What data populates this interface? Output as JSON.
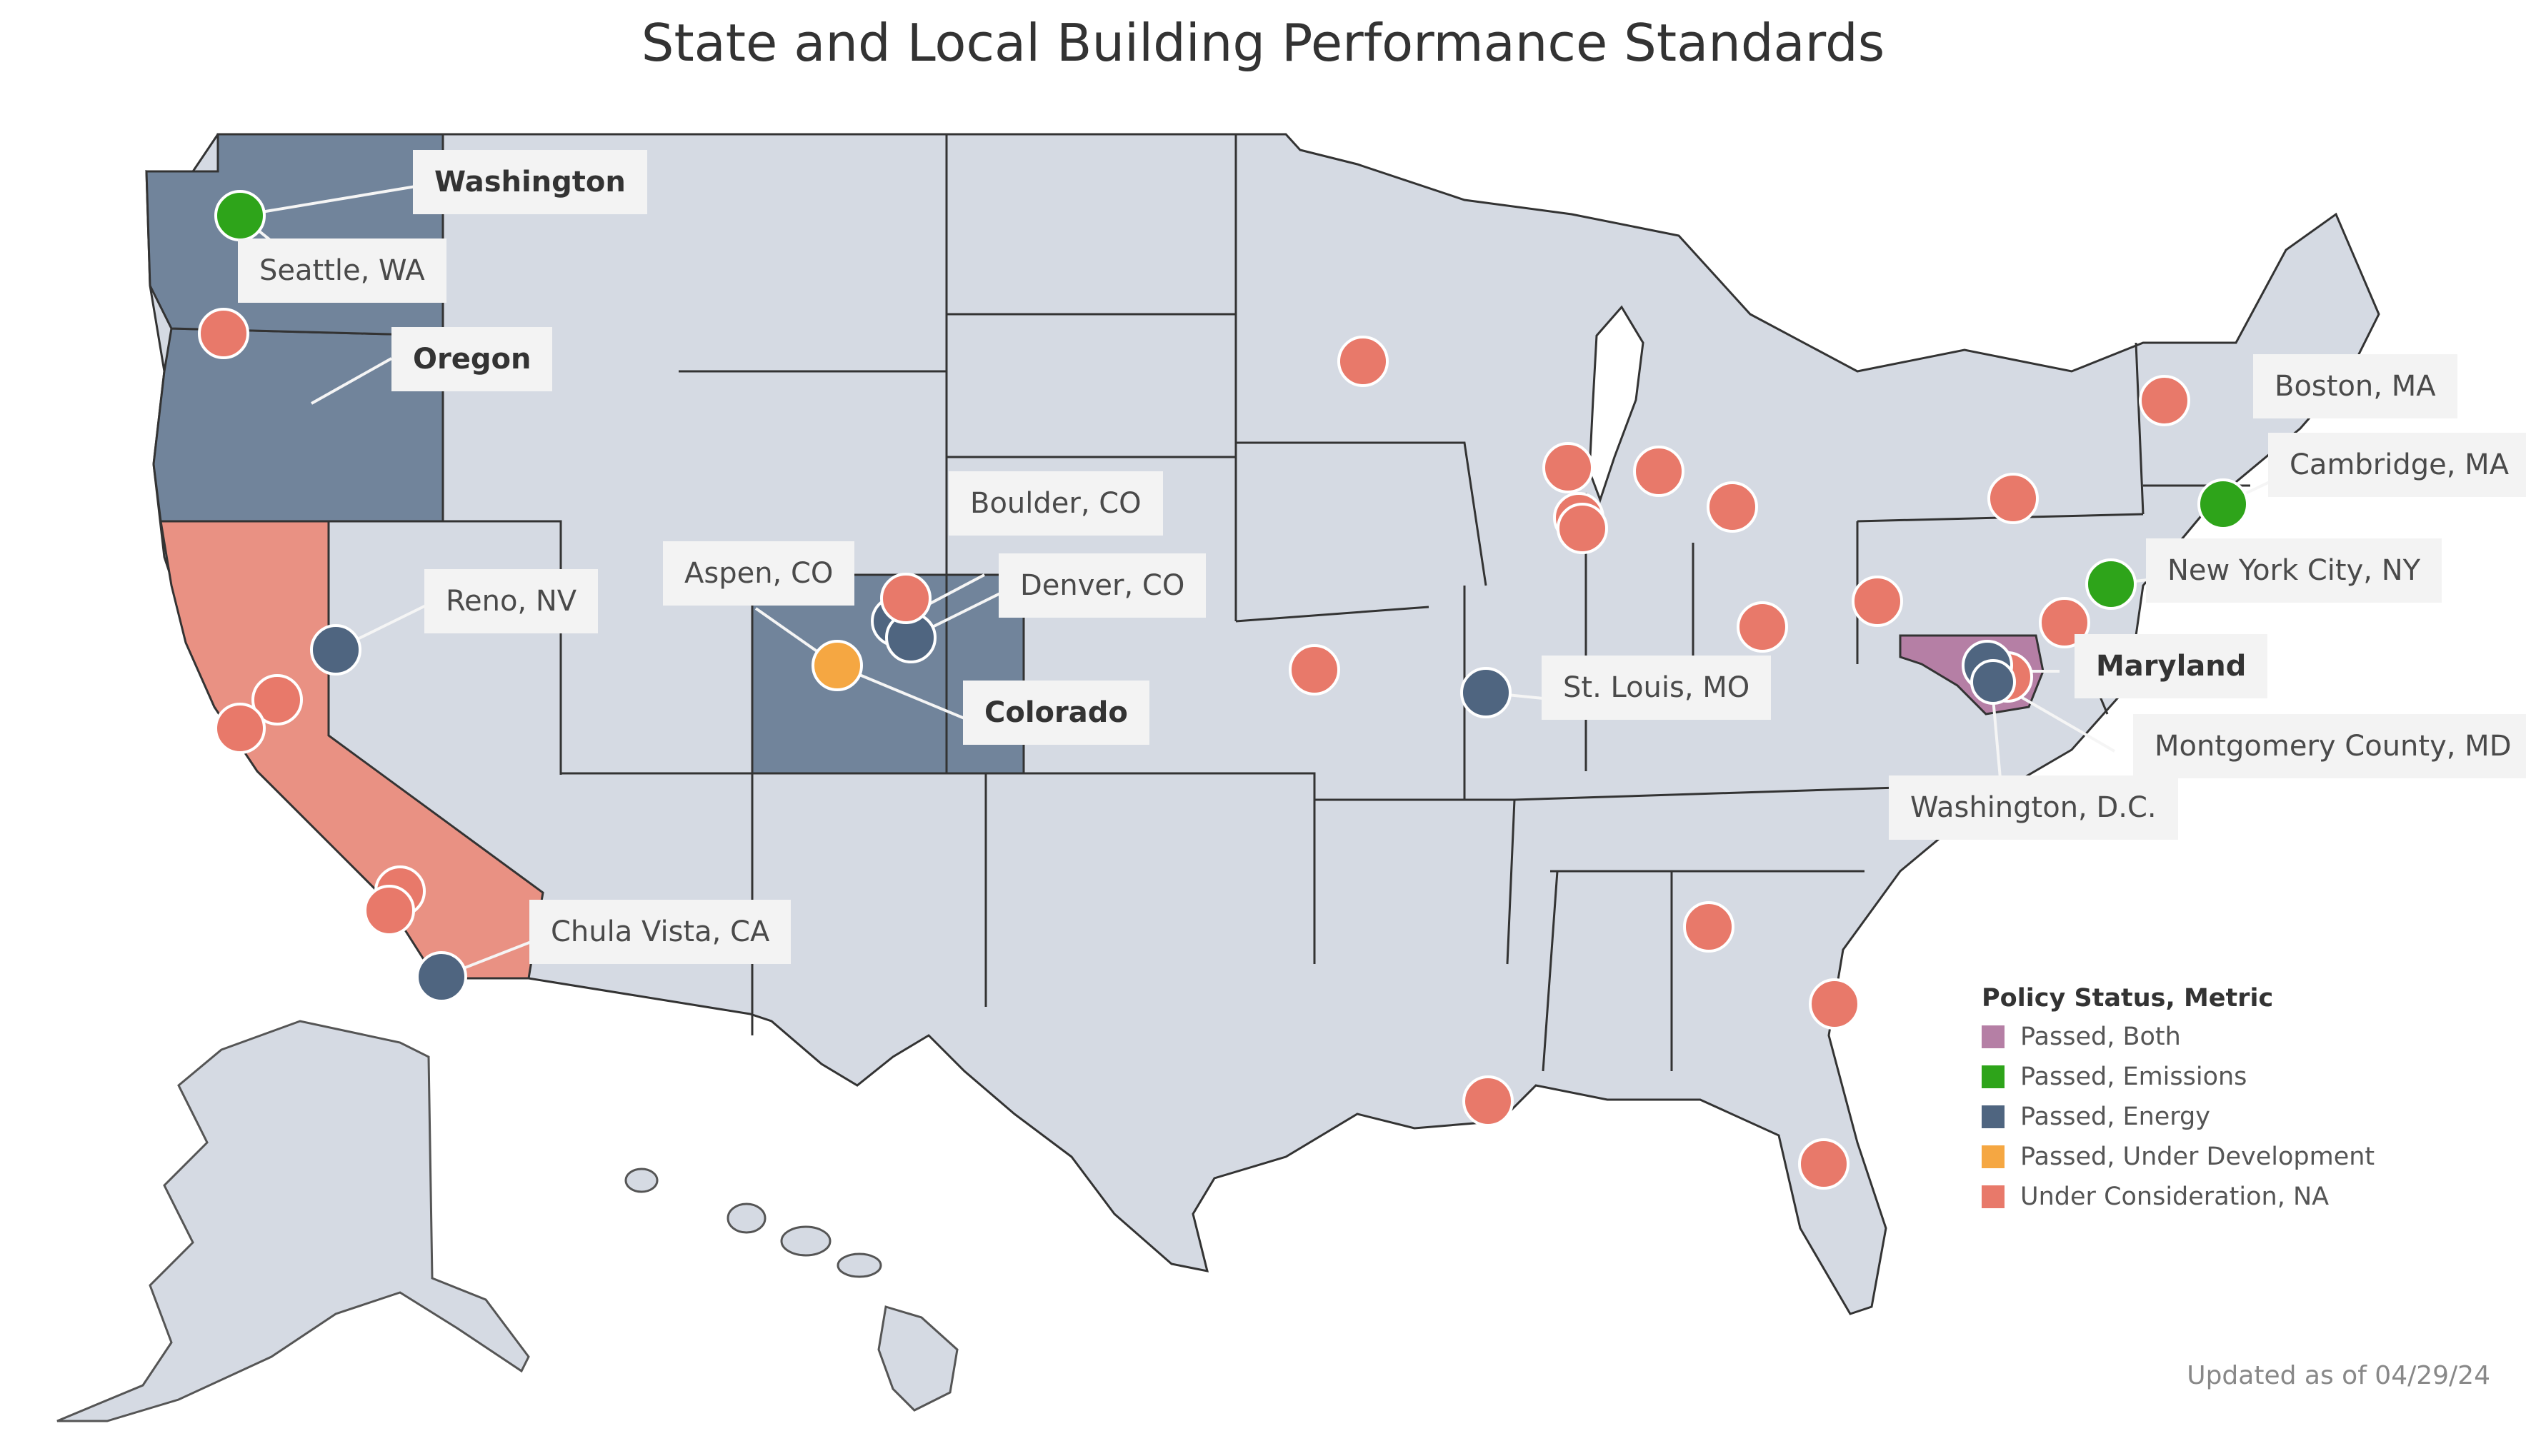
{
  "title": "State and Local Building Performance Standards",
  "updated": "Updated as of 04/29/24",
  "colors": {
    "passed_both": "#b57fa5",
    "passed_emissions": "#2ea41a",
    "passed_energy": "#4f6580",
    "passed_under_development": "#f5a742",
    "under_consideration": "#e8796a",
    "state_energy_fill": "#71849b",
    "state_consideration_fill": "#e99183",
    "state_default_fill": "#d5dae3"
  },
  "legend": {
    "title": "Policy Status, Metric",
    "items": [
      {
        "label": "Passed, Both",
        "color": "#b57fa5"
      },
      {
        "label": "Passed, Emissions",
        "color": "#2ea41a"
      },
      {
        "label": "Passed, Energy",
        "color": "#4f6580"
      },
      {
        "label": "Passed, Under Development",
        "color": "#f5a742"
      },
      {
        "label": "Under Consideration, NA",
        "color": "#e8796a"
      }
    ]
  },
  "labels": {
    "washington": "Washington",
    "seattle": "Seattle, WA",
    "oregon": "Oregon",
    "reno": "Reno, NV",
    "aspen": "Aspen, CO",
    "boulder": "Boulder, CO",
    "denver": "Denver, CO",
    "colorado": "Colorado",
    "chula_vista": "Chula Vista, CA",
    "st_louis": "St. Louis, MO",
    "boston": "Boston, MA",
    "cambridge": "Cambridge, MA",
    "nyc": "New York City, NY",
    "maryland": "Maryland",
    "montgomery": "Montgomery County, MD",
    "dc": "Washington, D.C."
  }
}
